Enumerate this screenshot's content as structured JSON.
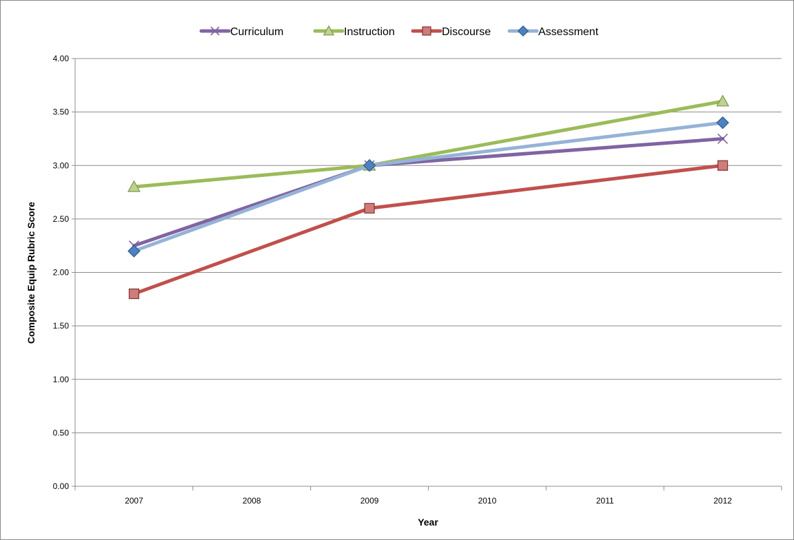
{
  "chart_data": {
    "type": "line",
    "title": "",
    "xlabel": "Year",
    "ylabel": "Composite Equip Rubric Score",
    "x": [
      "2007",
      "2008",
      "2009",
      "2010",
      "2011",
      "2012"
    ],
    "ylim": [
      0,
      4
    ],
    "ytick_labels": [
      "0.00",
      "0.50",
      "1.00",
      "1.50",
      "2.00",
      "2.50",
      "3.00",
      "3.50",
      "4.00"
    ],
    "grid": "horizontal",
    "legend_position": "top",
    "series": [
      {
        "name": "Curriculum",
        "color": "#8064A2",
        "marker": "x",
        "points": [
          {
            "x": "2007",
            "y": 2.25
          },
          {
            "x": "2009",
            "y": 3.0
          },
          {
            "x": "2012",
            "y": 3.25
          }
        ]
      },
      {
        "name": "Instruction",
        "color": "#9BBB59",
        "marker": "triangle",
        "points": [
          {
            "x": "2007",
            "y": 2.8
          },
          {
            "x": "2009",
            "y": 3.0
          },
          {
            "x": "2012",
            "y": 3.6
          }
        ]
      },
      {
        "name": "Discourse",
        "color": "#C0504D",
        "marker": "square",
        "points": [
          {
            "x": "2007",
            "y": 1.8
          },
          {
            "x": "2009",
            "y": 2.6
          },
          {
            "x": "2012",
            "y": 3.0
          }
        ]
      },
      {
        "name": "Assessment",
        "color": "#95B3D7",
        "marker": "diamond",
        "points": [
          {
            "x": "2007",
            "y": 2.2
          },
          {
            "x": "2009",
            "y": 3.0
          },
          {
            "x": "2012",
            "y": 3.4
          }
        ]
      }
    ]
  }
}
